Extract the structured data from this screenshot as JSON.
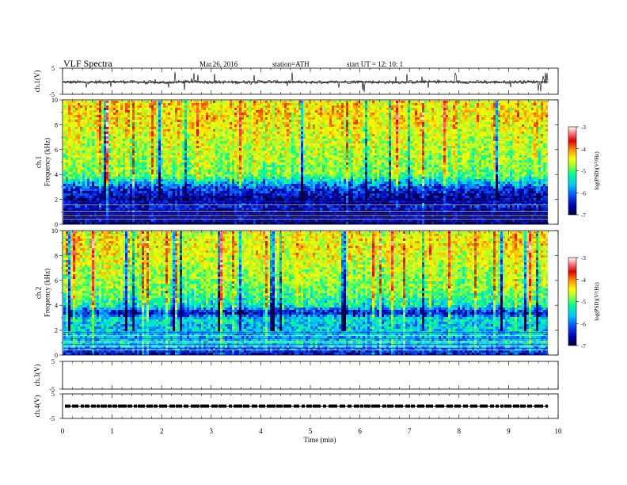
{
  "header": {
    "title": "VLF  Spectra",
    "date": "Mar.26, 2016",
    "station": "station=ATH",
    "start": "start  UT  =    12: 10: 1"
  },
  "colors": {
    "colormap": [
      "#000040",
      "#0000b0",
      "#0050ff",
      "#00c8ff",
      "#00ff90",
      "#a0ff30",
      "#ffff00",
      "#ff9000",
      "#e00000",
      "#ff8080",
      "#ffffff"
    ]
  },
  "chart_data": [
    {
      "type": "line",
      "panel": "ch1-waveform",
      "ylabel": "ch.1(V)",
      "ylim": [
        -5,
        5
      ],
      "yticks": [
        "5",
        "-5"
      ],
      "x": [
        0,
        0.5,
        1,
        1.5,
        2,
        2.5,
        3,
        3.5,
        4,
        4.5,
        5,
        5.5,
        6,
        6.5,
        7,
        7.5,
        8,
        8.5,
        9,
        9.5,
        9.8
      ],
      "values": [
        -0.3,
        -0.4,
        -0.2,
        -0.3,
        -0.5,
        -0.2,
        -0.3,
        -0.4,
        -0.2,
        -0.3,
        -0.4,
        -0.3,
        -0.2,
        -0.4,
        -0.3,
        -0.2,
        -0.3,
        -0.4,
        -0.3,
        -0.2,
        -0.3
      ]
    },
    {
      "type": "heatmap",
      "panel": "ch1-spectrogram",
      "ylabel": "ch.1\nFrequency  (kHz)",
      "ylim": [
        0,
        10
      ],
      "yticks": [
        "0",
        "2",
        "4",
        "6",
        "8",
        "10"
      ],
      "colorbar": {
        "label": "log(PSD)(V²/Hz)",
        "ticks": [
          "-3",
          "-4",
          "-5",
          "-6",
          "-7"
        ],
        "range": [
          -7,
          -3
        ]
      },
      "band_freq_khz": [
        0.3,
        1,
        1.5,
        2,
        2.5,
        3,
        3.5,
        4,
        5,
        6,
        7,
        8,
        9,
        9.8
      ],
      "band_log_psd": [
        -6.8,
        -6.9,
        -6.5,
        -6.8,
        -6.6,
        -6.3,
        -5.8,
        -5.2,
        -5.0,
        -4.9,
        -4.8,
        -4.6,
        -4.5,
        -4.6
      ]
    },
    {
      "type": "heatmap",
      "panel": "ch2-spectrogram",
      "ylabel": "ch.2\nFrequency  (kHz)",
      "ylim": [
        0,
        10
      ],
      "yticks": [
        "0",
        "2",
        "4",
        "6",
        "8",
        "10"
      ],
      "colorbar": {
        "label": "log(PSD)(V²/Hz)",
        "ticks": [
          "-3",
          "-4",
          "-5",
          "-6",
          "-7"
        ],
        "range": [
          -7,
          -3
        ]
      },
      "band_freq_khz": [
        0.3,
        1,
        1.5,
        2,
        2.5,
        3,
        3.5,
        4,
        5,
        6,
        7,
        8,
        9,
        9.8
      ],
      "band_log_psd": [
        -6.5,
        -5.6,
        -5.9,
        -5.7,
        -5.8,
        -5.6,
        -6.6,
        -5.6,
        -5.2,
        -5.0,
        -4.9,
        -4.7,
        -4.6,
        -4.7
      ]
    },
    {
      "type": "line",
      "panel": "ch3-waveform",
      "ylabel": "ch.3(V)",
      "ylim": [
        -5,
        5
      ],
      "yticks": [
        "5",
        "-5"
      ],
      "x": [],
      "values": []
    },
    {
      "type": "line",
      "panel": "ch4-waveform",
      "ylabel": "ch.4(V)",
      "ylim": [
        -5,
        5
      ],
      "yticks": [
        "5",
        "-5"
      ],
      "x": [
        0,
        9.8
      ],
      "values": [
        0,
        0
      ]
    }
  ],
  "xaxis": {
    "label": "Time  (min)",
    "range": [
      0,
      10
    ],
    "ticks": [
      "0",
      "1",
      "2",
      "3",
      "4",
      "5",
      "6",
      "7",
      "8",
      "9",
      "10"
    ]
  }
}
